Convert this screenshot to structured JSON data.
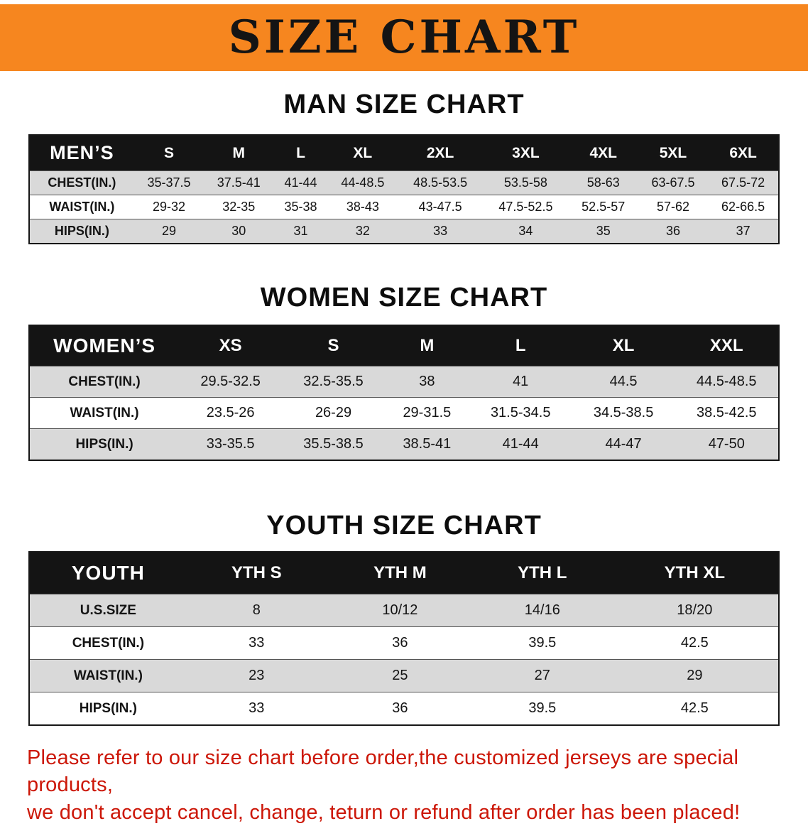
{
  "banner": {
    "title": "SIZE CHART",
    "background_color": "#f6861f",
    "text_color": "#141414"
  },
  "sections": [
    {
      "heading": "MAN SIZE CHART",
      "table": {
        "header": [
          "MEN’S",
          "S",
          "M",
          "L",
          "XL",
          "2XL",
          "3XL",
          "4XL",
          "5XL",
          "6XL"
        ],
        "rows": [
          [
            "CHEST(IN.)",
            "35-37.5",
            "37.5-41",
            "41-44",
            "44-48.5",
            "48.5-53.5",
            "53.5-58",
            "58-63",
            "63-67.5",
            "67.5-72"
          ],
          [
            "WAIST(IN.)",
            "29-32",
            "32-35",
            "35-38",
            "38-43",
            "43-47.5",
            "47.5-52.5",
            "52.5-57",
            "57-62",
            "62-66.5"
          ],
          [
            "HIPS(IN.)",
            "29",
            "30",
            "31",
            "32",
            "33",
            "34",
            "35",
            "36",
            "37"
          ]
        ]
      }
    },
    {
      "heading": "WOMEN SIZE CHART",
      "table": {
        "header": [
          "WOMEN’S",
          "XS",
          "S",
          "M",
          "L",
          "XL",
          "XXL"
        ],
        "rows": [
          [
            "CHEST(IN.)",
            "29.5-32.5",
            "32.5-35.5",
            "38",
            "41",
            "44.5",
            "44.5-48.5"
          ],
          [
            "WAIST(IN.)",
            "23.5-26",
            "26-29",
            "29-31.5",
            "31.5-34.5",
            "34.5-38.5",
            "38.5-42.5"
          ],
          [
            "HIPS(IN.)",
            "33-35.5",
            "35.5-38.5",
            "38.5-41",
            "41-44",
            "44-47",
            "47-50"
          ]
        ]
      }
    },
    {
      "heading": "YOUTH SIZE CHART",
      "table": {
        "header": [
          "YOUTH",
          "YTH S",
          "YTH M",
          "YTH L",
          "YTH XL"
        ],
        "rows": [
          [
            "U.S.SIZE",
            "8",
            "10/12",
            "14/16",
            "18/20"
          ],
          [
            "CHEST(IN.)",
            "33",
            "36",
            "39.5",
            "42.5"
          ],
          [
            "WAIST(IN.)",
            "23",
            "25",
            "27",
            "29"
          ],
          [
            "HIPS(IN.)",
            "33",
            "36",
            "39.5",
            "42.5"
          ]
        ]
      }
    }
  ],
  "footnote": {
    "line1": "Please refer to our size chart before order,the customized jerseys are special products,",
    "line2": "we don't accept cancel, change, teturn or refund after order has been placed!",
    "color": "#cc1708"
  }
}
